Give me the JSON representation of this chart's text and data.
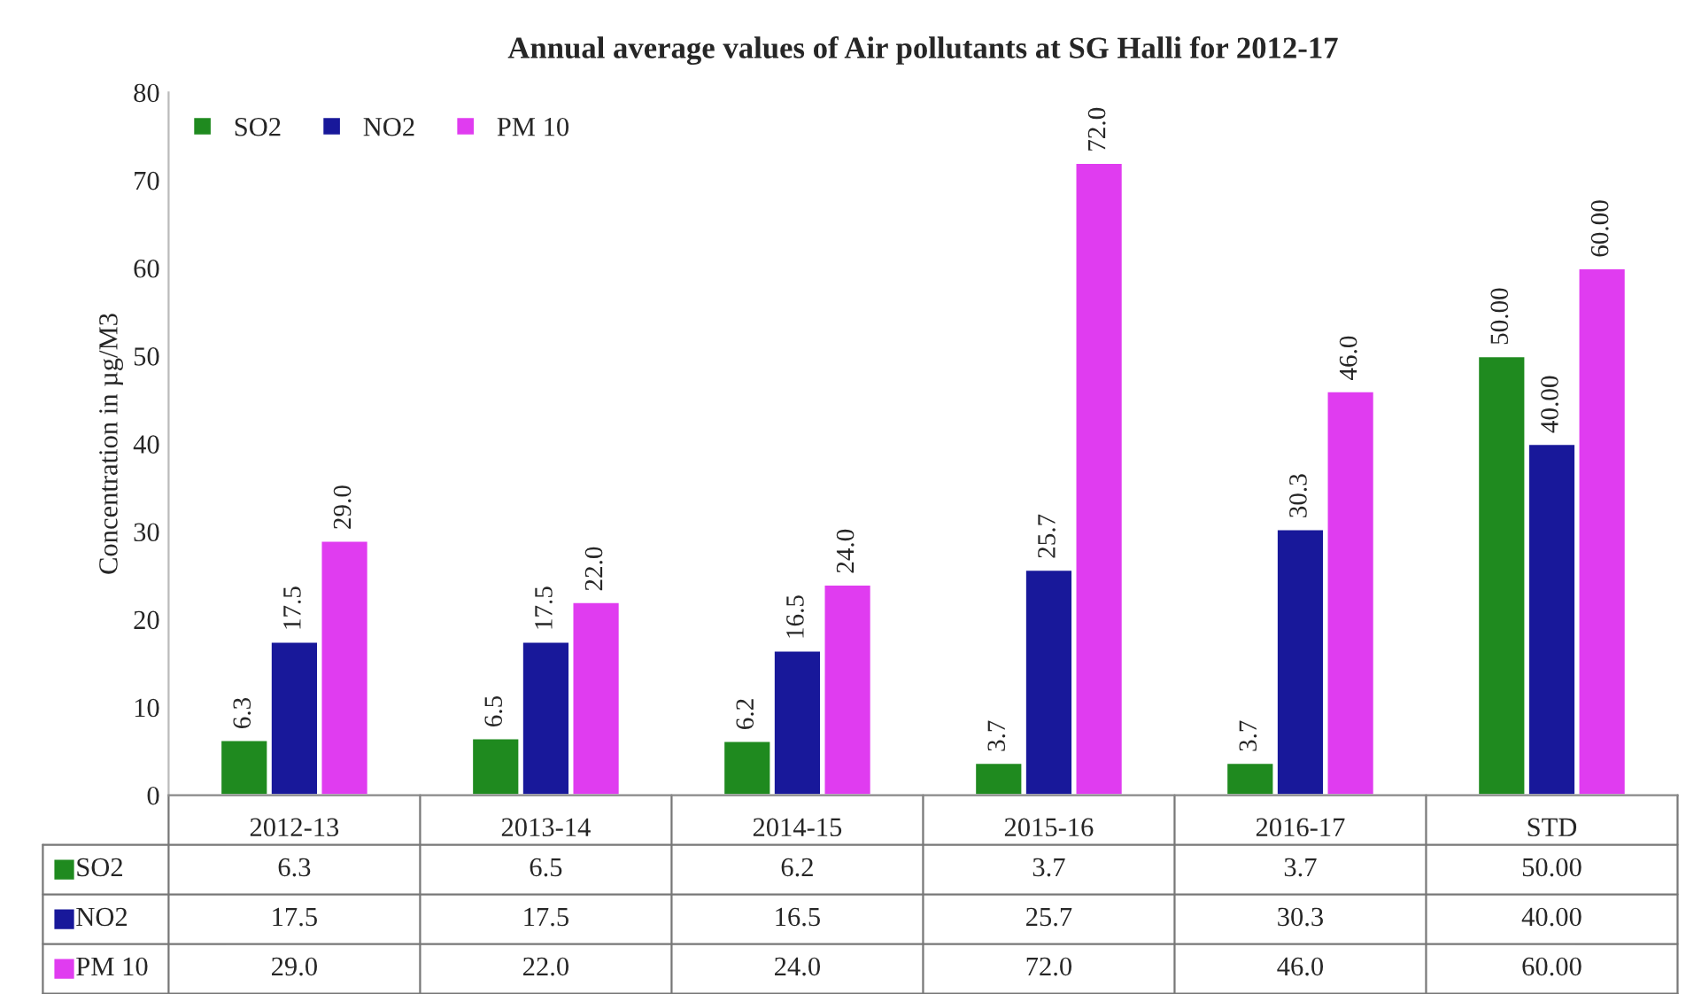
{
  "chart_data": {
    "type": "bar",
    "title": "Annual average values of Air pollutants at SG Halli for 2012-17",
    "ylabel": "Concentration in µg/M3",
    "categories": [
      "2012-13",
      "2013-14",
      "2014-15",
      "2015-16",
      "2016-17",
      "STD"
    ],
    "series": [
      {
        "name": "SO2",
        "color": "#1f8a1f",
        "values": [
          6.3,
          6.5,
          6.2,
          3.7,
          3.7,
          50
        ],
        "value_labels": [
          "6.3",
          "6.5",
          "6.2",
          "3.7",
          "3.7",
          "50.00"
        ]
      },
      {
        "name": "NO2",
        "color": "#18189a",
        "values": [
          17.5,
          17.5,
          16.5,
          25.7,
          30.3,
          40
        ],
        "value_labels": [
          "17.5",
          "17.5",
          "16.5",
          "25.7",
          "30.3",
          "40.00"
        ]
      },
      {
        "name": "PM 10",
        "color": "#e03cf0",
        "values": [
          29.0,
          22.0,
          24.0,
          72.0,
          46.0,
          60
        ],
        "value_labels": [
          "29.0",
          "22.0",
          "24.0",
          "72.0",
          "46.0",
          "60.00"
        ]
      }
    ],
    "ylim": [
      0,
      80
    ],
    "yticks": [
      0,
      10,
      20,
      30,
      40,
      50,
      60,
      70,
      80
    ],
    "grid": false,
    "legend": "left"
  }
}
